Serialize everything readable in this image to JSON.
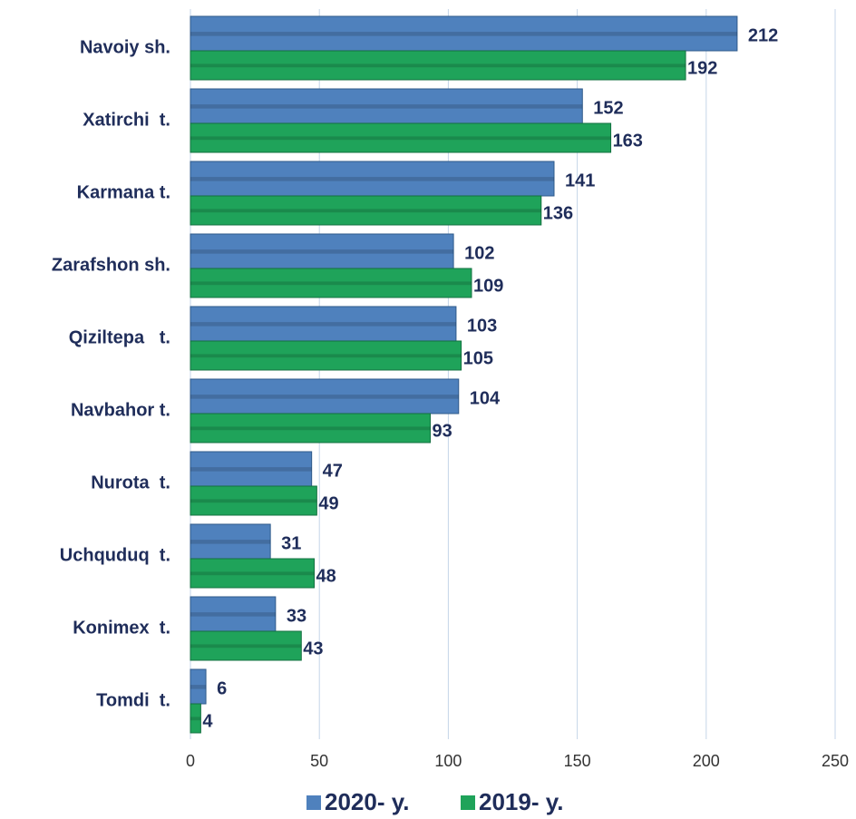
{
  "chart_data": {
    "type": "hbar",
    "categories": [
      "Navoiy sh.",
      "Xatirchi  t.",
      "Karmana t.",
      "Zarafshon sh.",
      "Qiziltepa   t.",
      "Navbahor t.",
      "Nurota  t.",
      "Uchquduq  t.",
      "Konimex  t.",
      "Tomdi  t."
    ],
    "series": [
      {
        "name": "2020- y.",
        "color": "#4f81bd",
        "values": [
          212,
          152,
          141,
          102,
          103,
          104,
          47,
          31,
          33,
          6
        ]
      },
      {
        "name": "2019- y.",
        "color": "#1fa35a",
        "values": [
          192,
          163,
          136,
          109,
          105,
          93,
          49,
          48,
          43,
          4
        ]
      }
    ],
    "xlim": [
      0,
      250
    ],
    "xticks": [
      0,
      50,
      100,
      150,
      200,
      250
    ],
    "grid": true,
    "legend": "bottom"
  }
}
